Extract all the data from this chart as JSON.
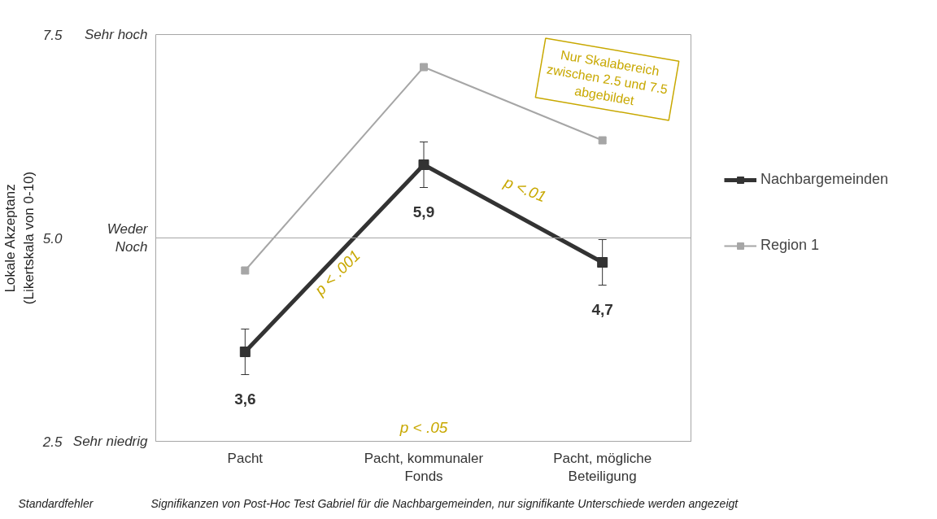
{
  "chart_data": {
    "type": "line",
    "ylabel": "Lokale Akzeptanz\n(Likertskala von 0-10)",
    "categories": [
      "Pacht",
      "Pacht, kommunaler\nFonds",
      "Pacht, mögliche\nBeteiligung"
    ],
    "series": [
      {
        "name": "Nachbargemeinden",
        "color": "#333333",
        "values": [
          3.6,
          5.9,
          4.7
        ],
        "errors": [
          0.28,
          0.28,
          0.28
        ],
        "value_labels": [
          "3,6",
          "5,9",
          "4,7"
        ]
      },
      {
        "name": "Region 1",
        "color": "#a6a6a6",
        "values": [
          4.6,
          7.1,
          6.2
        ]
      }
    ],
    "ylim": [
      2.5,
      7.5
    ],
    "yticks": [
      2.5,
      {
        "value": 5,
        "label": "5.0"
      },
      7.5
    ],
    "ref_lines": [
      {
        "axis": "y",
        "value": 5.0,
        "label": null,
        "color": "#a6a6a6"
      }
    ],
    "grid": false,
    "legend": "right",
    "marker": "square",
    "line_style": "solid",
    "annotations": [
      "Nur Skalabereich\nzwischen 2.5 und 7.5\nabgebildet",
      "p < .001",
      "p <.01",
      "p < .05",
      "Standardfehler",
      "Signifikanzen von Post-Hoc Test Gabriel für die  Nachbargemeinden, nur signifikante Unterschiede werden angezeigt",
      "Sehr hoch",
      "Weder\nNoch",
      "Sehr niedrig"
    ]
  }
}
